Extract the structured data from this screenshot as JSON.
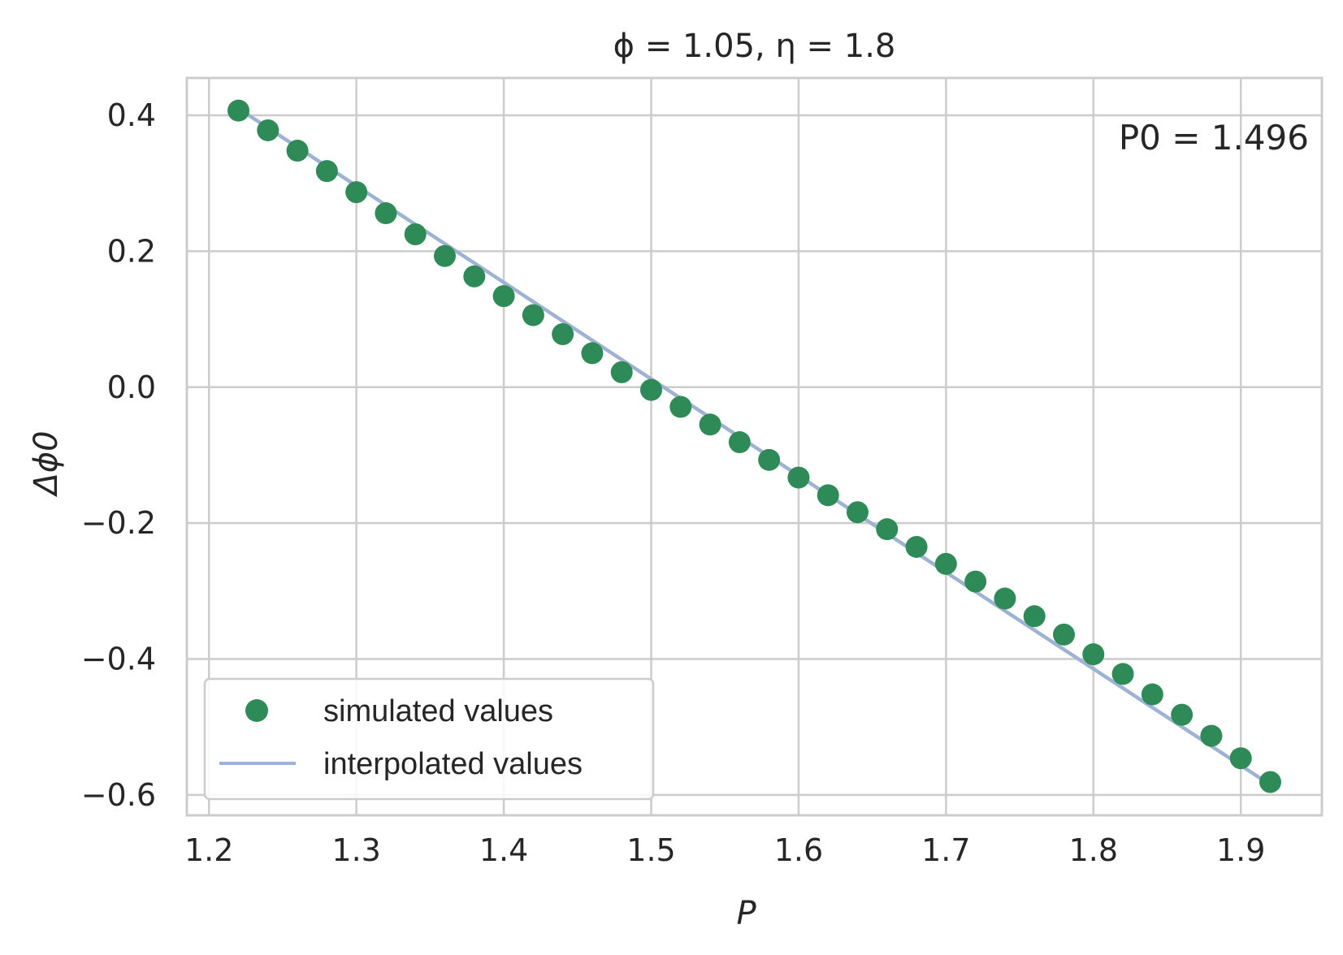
{
  "chart_data": {
    "type": "scatter",
    "title": "ϕ = 1.05,  η = 1.8",
    "xlabel": "P",
    "ylabel": "Δϕ0",
    "xlim": [
      1.185,
      1.955
    ],
    "ylim": [
      -0.63,
      0.455
    ],
    "xticks": [
      "1.2",
      "1.3",
      "1.4",
      "1.5",
      "1.6",
      "1.7",
      "1.8",
      "1.9"
    ],
    "yticks": [
      "0.4",
      "0.2",
      "0.0",
      "−0.2",
      "−0.4",
      "−0.6"
    ],
    "grid": true,
    "legend_position": "lower-left",
    "annotation": "P0 = 1.496",
    "series": [
      {
        "name": "simulated values",
        "kind": "markers",
        "color": "#2e8b57",
        "x": [
          1.22,
          1.24,
          1.26,
          1.28,
          1.3,
          1.32,
          1.34,
          1.36,
          1.38,
          1.4,
          1.42,
          1.44,
          1.46,
          1.48,
          1.5,
          1.52,
          1.54,
          1.56,
          1.58,
          1.6,
          1.62,
          1.64,
          1.66,
          1.68,
          1.7,
          1.72,
          1.74,
          1.76,
          1.78,
          1.8,
          1.82,
          1.84,
          1.86,
          1.88,
          1.9,
          1.92
        ],
        "y": [
          0.407,
          0.378,
          0.348,
          0.318,
          0.287,
          0.256,
          0.225,
          0.193,
          0.163,
          0.134,
          0.106,
          0.078,
          0.05,
          0.022,
          -0.004,
          -0.029,
          -0.055,
          -0.081,
          -0.107,
          -0.133,
          -0.159,
          -0.184,
          -0.209,
          -0.235,
          -0.26,
          -0.286,
          -0.311,
          -0.337,
          -0.364,
          -0.393,
          -0.422,
          -0.452,
          -0.482,
          -0.513,
          -0.546,
          -0.581
        ]
      },
      {
        "name": "interpolated values",
        "kind": "line",
        "color": "#9eb3d3",
        "x": [
          1.22,
          1.92
        ],
        "y": [
          0.41,
          -0.585
        ]
      }
    ]
  }
}
